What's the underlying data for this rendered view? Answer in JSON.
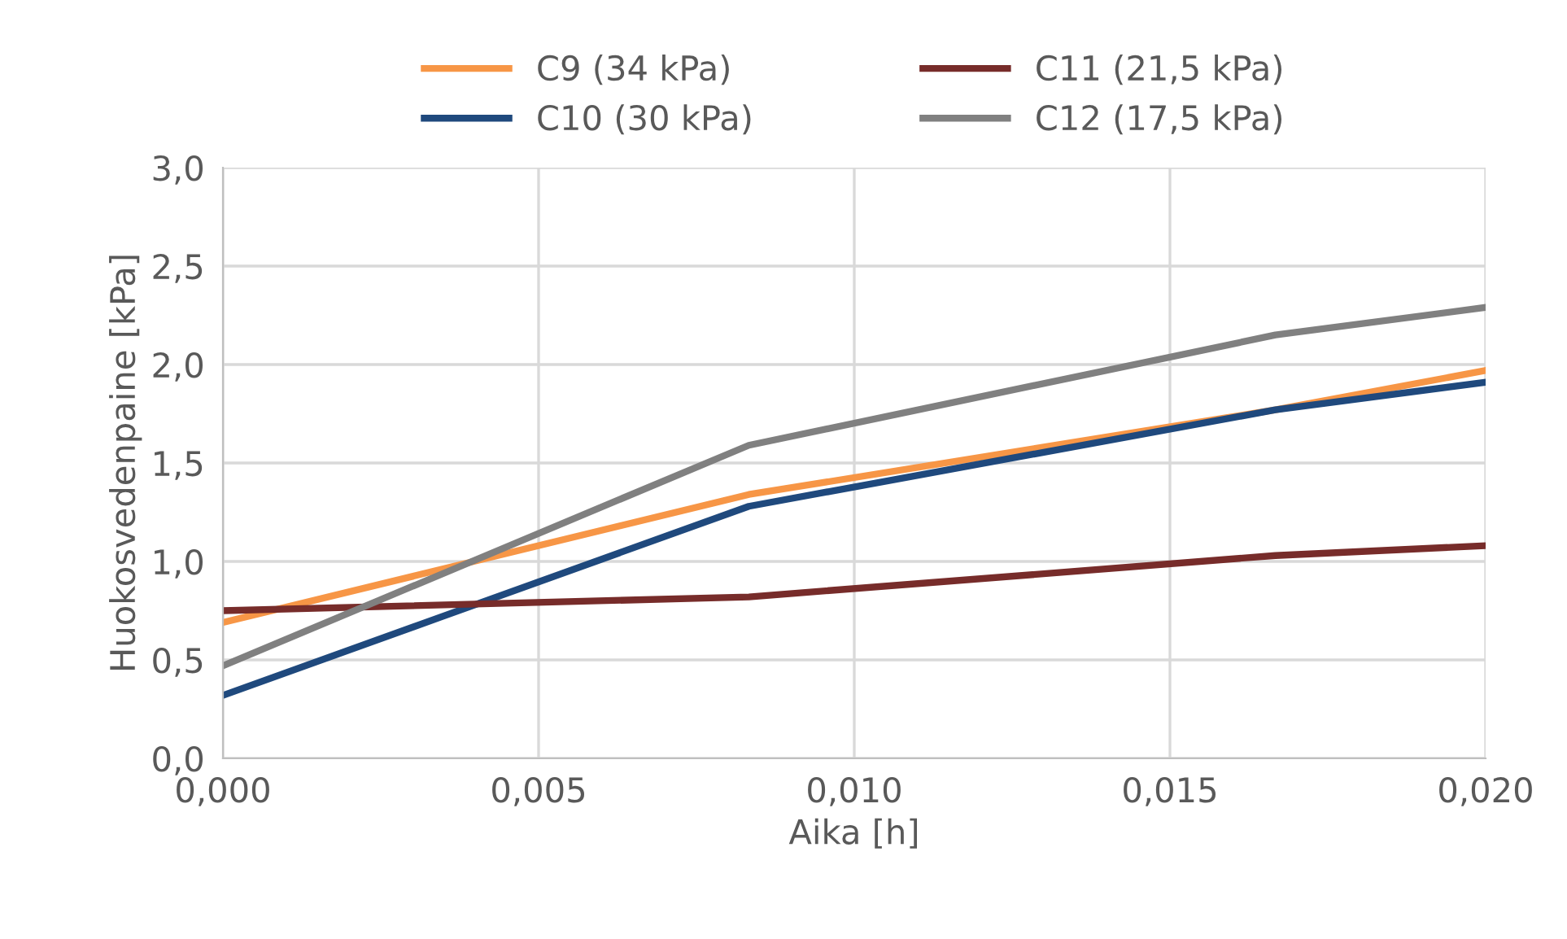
{
  "chart_data": {
    "type": "line",
    "xlabel": "Aika [h]",
    "ylabel": "Huokosvedenpaine [kPa]",
    "x": [
      0,
      0.00833,
      0.01667,
      0.02
    ],
    "series": [
      {
        "name": "C9 (34 kPa)",
        "color": "#f79646",
        "values": [
          0.69,
          1.34,
          1.77,
          1.97
        ]
      },
      {
        "name": "C10 (30 kPa)",
        "color": "#1f497d",
        "values": [
          0.32,
          1.28,
          1.77,
          1.91
        ]
      },
      {
        "name": "C11 (21,5 kPa)",
        "color": "#772c2a",
        "values": [
          0.75,
          0.82,
          1.03,
          1.08
        ]
      },
      {
        "name": "C12 (17,5 kPa)",
        "color": "#808080",
        "values": [
          0.47,
          1.59,
          2.15,
          2.29
        ]
      }
    ],
    "xlim": [
      0,
      0.02
    ],
    "xticks": [
      {
        "value": 0,
        "label": "0,000"
      },
      {
        "value": 0.005,
        "label": "0,005"
      },
      {
        "value": 0.01,
        "label": "0,010"
      },
      {
        "value": 0.015,
        "label": "0,015"
      },
      {
        "value": 0.02,
        "label": "0,020"
      }
    ],
    "ylim": [
      0,
      3
    ],
    "yticks": [
      {
        "value": 0,
        "label": "0,0"
      },
      {
        "value": 0.5,
        "label": "0,5"
      },
      {
        "value": 1,
        "label": "1,0"
      },
      {
        "value": 1.5,
        "label": "1,5"
      },
      {
        "value": 2,
        "label": "2,0"
      },
      {
        "value": 2.5,
        "label": "2,5"
      },
      {
        "value": 3,
        "label": "3,0"
      }
    ],
    "grid": true,
    "legend": "top",
    "marker": "none",
    "line_style": "solid"
  }
}
